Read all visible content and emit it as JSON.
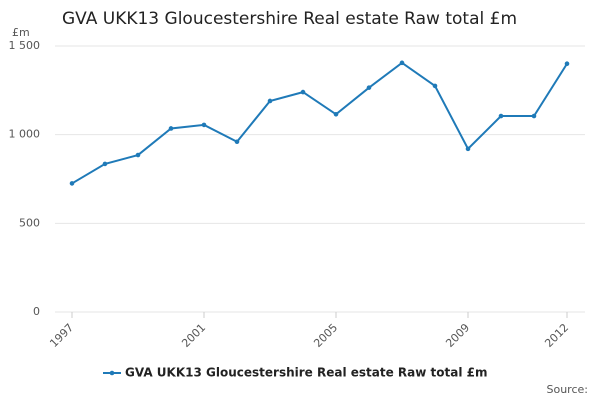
{
  "chart_data": {
    "type": "line",
    "title": "GVA UKK13 Gloucestershire Real estate Raw total £m",
    "ylabel": "£m",
    "source": "Source:",
    "x": [
      1997,
      1998,
      1999,
      2000,
      2001,
      2002,
      2003,
      2004,
      2005,
      2006,
      2007,
      2008,
      2009,
      2010,
      2011,
      2012
    ],
    "series": [
      {
        "name": "GVA UKK13 Gloucestershire Real estate Raw total £m",
        "color": "#1f7ab8",
        "values": [
          725,
          835,
          885,
          1035,
          1055,
          960,
          1190,
          1240,
          1115,
          1265,
          1405,
          1275,
          920,
          1105,
          1105,
          1400
        ]
      }
    ],
    "xlim": [
      1997,
      2012
    ],
    "xticks": [
      1997,
      2001,
      2005,
      2009,
      2012
    ],
    "ylim": [
      0,
      1500
    ],
    "yticks": [
      0,
      500,
      {
        "value": 1000,
        "label": "1 000"
      },
      {
        "value": 1500,
        "label": "1 500"
      }
    ],
    "grid": true,
    "legend": "bottom"
  }
}
